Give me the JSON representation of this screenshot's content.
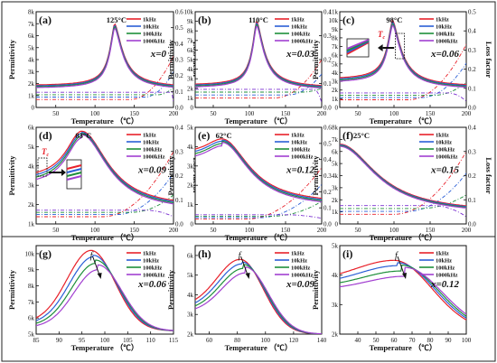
{
  "figure": {
    "legend": [
      "1kHz",
      "10kHz",
      "100kHz",
      "1000kHz"
    ],
    "series_colors": [
      "#e8212a",
      "#2a5fd6",
      "#1e8f3a",
      "#a23fd0"
    ],
    "loss_colors": [
      "#e8212a",
      "#2a5fd6",
      "#1e8f3a",
      "#7a2fd0"
    ],
    "x_unit_label": "Temperature （℃）",
    "tc_label": "T",
    "tc_sub": "c",
    "f_label": "f"
  },
  "chart_data": [
    {
      "panel": "(a)",
      "type": "line",
      "x_title": "Temperature （℃）",
      "y_left_title": "Permittivity",
      "y_right_title": "Loss factor",
      "xlim": [
        25,
        200
      ],
      "x_ticks": [
        50,
        100,
        150,
        200
      ],
      "ylim_left": [
        0,
        8000
      ],
      "y_left_ticks": [
        "0",
        "1k",
        "2k",
        "3k",
        "4k",
        "5k",
        "6k",
        "7k",
        "8k"
      ],
      "ylim_right": [
        0,
        0.6
      ],
      "y_right_ticks": [
        "0.0",
        "0.1",
        "0.2",
        "0.3",
        "0.4",
        "0.5",
        "0.6"
      ],
      "peak_label": "125°C",
      "comp_label": "x=0",
      "peak_T": 125,
      "peak_eps": 7000,
      "base_eps": 1800,
      "end_eps": 1600,
      "width": 14,
      "loss_base": 0.05,
      "loss_end": 0.32,
      "loss_rise": 145
    },
    {
      "panel": "(b)",
      "type": "line",
      "x_title": "Temperature （℃）",
      "y_left_title": "Permittivity",
      "y_right_title": "Loss factor",
      "xlim": [
        25,
        200
      ],
      "x_ticks": [
        50,
        100,
        150,
        200
      ],
      "ylim_left": [
        0,
        10000
      ],
      "y_left_ticks": [
        "0",
        "1k",
        "2k",
        "3k",
        "4k",
        "5k",
        "6k",
        "7k",
        "8k",
        "9k",
        "10k"
      ],
      "ylim_right": [
        0,
        0.4
      ],
      "y_right_ticks": [
        "0.0",
        "0.1",
        "0.2",
        "0.3",
        "0.4"
      ],
      "peak_label": "110°C",
      "comp_label": "x=0.03",
      "peak_T": 110,
      "peak_eps": 9000,
      "base_eps": 2300,
      "end_eps": 2000,
      "width": 14,
      "loss_base": 0.04,
      "loss_end": 0.2,
      "loss_rise": 135
    },
    {
      "panel": "(c)",
      "type": "line",
      "x_title": "Temperature （℃）",
      "y_left_title": "Permittivity",
      "y_right_title": "Loss factor",
      "xlim": [
        25,
        200
      ],
      "x_ticks": [
        50,
        100,
        150,
        200
      ],
      "ylim_left": [
        0,
        11000
      ],
      "y_left_ticks": [
        "0",
        "1k",
        "2k",
        "3k",
        "4k",
        "5k",
        "6k",
        "7k",
        "8k",
        "9k",
        "10k",
        "11k"
      ],
      "ylim_right": [
        0,
        0.5
      ],
      "y_right_ticks": [
        "0.0",
        "0.1",
        "0.2",
        "0.3",
        "0.4",
        "0.5"
      ],
      "peak_label": "98°C",
      "comp_label": "x=0.06",
      "peak_T": 98,
      "peak_eps": 10000,
      "base_eps": 3200,
      "end_eps": 2300,
      "width": 16,
      "loss_base": 0.04,
      "loss_end": 0.33,
      "loss_rise": 120,
      "tc": true
    },
    {
      "panel": "(d)",
      "type": "line",
      "x_title": "Temperature （℃）",
      "y_left_title": "Permittivity",
      "y_right_title": "Loss factor",
      "xlim": [
        25,
        200
      ],
      "x_ticks": [
        50,
        100,
        150,
        200
      ],
      "ylim_left": [
        1000,
        6000
      ],
      "y_left_ticks": [
        "1k",
        "2k",
        "3k",
        "4k",
        "5k",
        "6k"
      ],
      "ylim_right": [
        0,
        0.4
      ],
      "y_right_ticks": [
        "0.0",
        "0.1",
        "0.2",
        "0.3",
        "0.4"
      ],
      "peak_label": "83°C",
      "comp_label": "x=0.09",
      "peak_T": 83,
      "peak_eps": 5800,
      "base_eps": 3300,
      "end_eps": 1800,
      "width": 40,
      "loss_base": 0.03,
      "loss_end": 0.3,
      "loss_rise": 110,
      "tc": true,
      "inset": true
    },
    {
      "panel": "(e)",
      "type": "line",
      "x_title": "Temperature （℃）",
      "y_left_title": "Permittivity",
      "y_right_title": "Loss factor",
      "xlim": [
        25,
        200
      ],
      "x_ticks": [
        50,
        100,
        150,
        200
      ],
      "ylim_left": [
        0,
        5000
      ],
      "y_left_ticks": [
        "0",
        "1k",
        "2k",
        "3k",
        "4k",
        "5k"
      ],
      "ylim_right": [
        0,
        0.6
      ],
      "y_right_ticks": [
        "0.0",
        "0.1",
        "0.2",
        "0.3",
        "0.4",
        "0.5",
        "0.6"
      ],
      "peak_label": "62°C",
      "comp_label": "x=0.12",
      "peak_T": 62,
      "peak_eps": 4400,
      "base_eps": 3600,
      "end_eps": 1000,
      "width": 45,
      "loss_base": 0.03,
      "loss_end": 0.35,
      "loss_rise": 95
    },
    {
      "panel": "(f)",
      "type": "line",
      "x_title": "Temperature （℃）",
      "y_left_title": "Permittivity",
      "y_right_title": "Loss factor",
      "xlim": [
        25,
        200
      ],
      "x_ticks": [
        50,
        100,
        150,
        200
      ],
      "ylim_left": [
        0,
        8000
      ],
      "y_left_ticks": [
        "0",
        "1k",
        "2k",
        "3k",
        "4k",
        "5k",
        "6k",
        "7k",
        "8k"
      ],
      "ylim_right": [
        0,
        0.4
      ],
      "y_right_ticks": [
        "0.0",
        "0.1",
        "0.2",
        "0.3",
        "0.4"
      ],
      "peak_label": "25°C",
      "comp_label": "x=0.15",
      "peak_T": 25,
      "peak_eps": 6600,
      "base_eps": 6600,
      "end_eps": 900,
      "width": 60,
      "loss_base": 0.04,
      "loss_end": 0.3,
      "loss_rise": 100
    },
    {
      "panel": "(g)",
      "type": "line",
      "x_title": "Temperature （℃）",
      "y_left_title": "Permittivity",
      "xlim": [
        85,
        115
      ],
      "x_ticks": [
        85,
        90,
        95,
        100,
        105,
        110,
        115
      ],
      "ylim_left": [
        5000,
        10500
      ],
      "y_left_ticks": [
        "5k",
        "6k",
        "7k",
        "8k",
        "9k",
        "10k"
      ],
      "comp_label": "x=0.06",
      "peak_T": 97,
      "peak_eps": 10200,
      "peak_step": 0.5,
      "eps_step": 300,
      "left_eps": 5700,
      "right_eps": 5200,
      "width": 7
    },
    {
      "panel": "(h)",
      "type": "line",
      "x_title": "Temperature （℃）",
      "y_left_title": "Permittivity",
      "xlim": [
        50,
        140
      ],
      "x_ticks": [
        60,
        80,
        100,
        120,
        140
      ],
      "ylim_left": [
        2000,
        6500
      ],
      "y_left_ticks": [
        "2k",
        "3k",
        "4k",
        "5k",
        "6k"
      ],
      "comp_label": "x=0.09",
      "peak_T": 82,
      "peak_eps": 5800,
      "peak_step": 1.2,
      "eps_step": 130,
      "left_eps": 3400,
      "right_eps": 2000,
      "width": 22
    },
    {
      "panel": "(i)",
      "type": "line",
      "x_title": "Temperature （℃）",
      "y_left_title": "Permittivity",
      "xlim": [
        30,
        100
      ],
      "x_ticks": [
        40,
        50,
        60,
        70,
        80,
        90,
        100
      ],
      "ylim_left": [
        2000,
        5000
      ],
      "y_left_ticks": [
        "2k",
        "3k",
        "4k",
        "5k"
      ],
      "comp_label": "x=0.12",
      "peak_T": 60,
      "peak_eps": 4500,
      "peak_step": 2,
      "eps_step": 80,
      "left_eps": 3800,
      "right_eps": 2100,
      "width": 28
    }
  ]
}
